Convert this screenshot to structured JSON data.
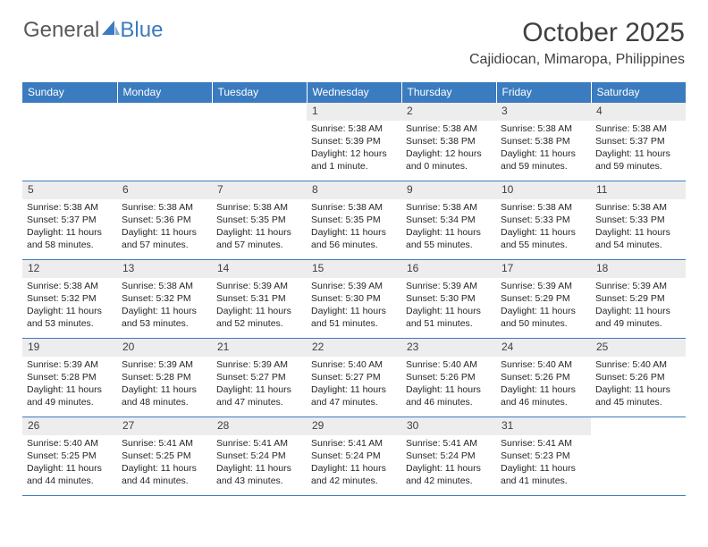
{
  "brand": {
    "part1": "General",
    "part2": "Blue"
  },
  "title": "October 2025",
  "location": "Cajidiocan, Mimaropa, Philippines",
  "colors": {
    "header_bg": "#3b7bbf",
    "header_text": "#ffffff",
    "daynum_bg": "#ededed",
    "text": "#404040",
    "border": "#3b7bbf"
  },
  "week_headers": [
    "Sunday",
    "Monday",
    "Tuesday",
    "Wednesday",
    "Thursday",
    "Friday",
    "Saturday"
  ],
  "weeks": [
    [
      null,
      null,
      null,
      {
        "n": "1",
        "sr": "Sunrise: 5:38 AM",
        "ss": "Sunset: 5:39 PM",
        "dl": "Daylight: 12 hours and 1 minute."
      },
      {
        "n": "2",
        "sr": "Sunrise: 5:38 AM",
        "ss": "Sunset: 5:38 PM",
        "dl": "Daylight: 12 hours and 0 minutes."
      },
      {
        "n": "3",
        "sr": "Sunrise: 5:38 AM",
        "ss": "Sunset: 5:38 PM",
        "dl": "Daylight: 11 hours and 59 minutes."
      },
      {
        "n": "4",
        "sr": "Sunrise: 5:38 AM",
        "ss": "Sunset: 5:37 PM",
        "dl": "Daylight: 11 hours and 59 minutes."
      }
    ],
    [
      {
        "n": "5",
        "sr": "Sunrise: 5:38 AM",
        "ss": "Sunset: 5:37 PM",
        "dl": "Daylight: 11 hours and 58 minutes."
      },
      {
        "n": "6",
        "sr": "Sunrise: 5:38 AM",
        "ss": "Sunset: 5:36 PM",
        "dl": "Daylight: 11 hours and 57 minutes."
      },
      {
        "n": "7",
        "sr": "Sunrise: 5:38 AM",
        "ss": "Sunset: 5:35 PM",
        "dl": "Daylight: 11 hours and 57 minutes."
      },
      {
        "n": "8",
        "sr": "Sunrise: 5:38 AM",
        "ss": "Sunset: 5:35 PM",
        "dl": "Daylight: 11 hours and 56 minutes."
      },
      {
        "n": "9",
        "sr": "Sunrise: 5:38 AM",
        "ss": "Sunset: 5:34 PM",
        "dl": "Daylight: 11 hours and 55 minutes."
      },
      {
        "n": "10",
        "sr": "Sunrise: 5:38 AM",
        "ss": "Sunset: 5:33 PM",
        "dl": "Daylight: 11 hours and 55 minutes."
      },
      {
        "n": "11",
        "sr": "Sunrise: 5:38 AM",
        "ss": "Sunset: 5:33 PM",
        "dl": "Daylight: 11 hours and 54 minutes."
      }
    ],
    [
      {
        "n": "12",
        "sr": "Sunrise: 5:38 AM",
        "ss": "Sunset: 5:32 PM",
        "dl": "Daylight: 11 hours and 53 minutes."
      },
      {
        "n": "13",
        "sr": "Sunrise: 5:38 AM",
        "ss": "Sunset: 5:32 PM",
        "dl": "Daylight: 11 hours and 53 minutes."
      },
      {
        "n": "14",
        "sr": "Sunrise: 5:39 AM",
        "ss": "Sunset: 5:31 PM",
        "dl": "Daylight: 11 hours and 52 minutes."
      },
      {
        "n": "15",
        "sr": "Sunrise: 5:39 AM",
        "ss": "Sunset: 5:30 PM",
        "dl": "Daylight: 11 hours and 51 minutes."
      },
      {
        "n": "16",
        "sr": "Sunrise: 5:39 AM",
        "ss": "Sunset: 5:30 PM",
        "dl": "Daylight: 11 hours and 51 minutes."
      },
      {
        "n": "17",
        "sr": "Sunrise: 5:39 AM",
        "ss": "Sunset: 5:29 PM",
        "dl": "Daylight: 11 hours and 50 minutes."
      },
      {
        "n": "18",
        "sr": "Sunrise: 5:39 AM",
        "ss": "Sunset: 5:29 PM",
        "dl": "Daylight: 11 hours and 49 minutes."
      }
    ],
    [
      {
        "n": "19",
        "sr": "Sunrise: 5:39 AM",
        "ss": "Sunset: 5:28 PM",
        "dl": "Daylight: 11 hours and 49 minutes."
      },
      {
        "n": "20",
        "sr": "Sunrise: 5:39 AM",
        "ss": "Sunset: 5:28 PM",
        "dl": "Daylight: 11 hours and 48 minutes."
      },
      {
        "n": "21",
        "sr": "Sunrise: 5:39 AM",
        "ss": "Sunset: 5:27 PM",
        "dl": "Daylight: 11 hours and 47 minutes."
      },
      {
        "n": "22",
        "sr": "Sunrise: 5:40 AM",
        "ss": "Sunset: 5:27 PM",
        "dl": "Daylight: 11 hours and 47 minutes."
      },
      {
        "n": "23",
        "sr": "Sunrise: 5:40 AM",
        "ss": "Sunset: 5:26 PM",
        "dl": "Daylight: 11 hours and 46 minutes."
      },
      {
        "n": "24",
        "sr": "Sunrise: 5:40 AM",
        "ss": "Sunset: 5:26 PM",
        "dl": "Daylight: 11 hours and 46 minutes."
      },
      {
        "n": "25",
        "sr": "Sunrise: 5:40 AM",
        "ss": "Sunset: 5:26 PM",
        "dl": "Daylight: 11 hours and 45 minutes."
      }
    ],
    [
      {
        "n": "26",
        "sr": "Sunrise: 5:40 AM",
        "ss": "Sunset: 5:25 PM",
        "dl": "Daylight: 11 hours and 44 minutes."
      },
      {
        "n": "27",
        "sr": "Sunrise: 5:41 AM",
        "ss": "Sunset: 5:25 PM",
        "dl": "Daylight: 11 hours and 44 minutes."
      },
      {
        "n": "28",
        "sr": "Sunrise: 5:41 AM",
        "ss": "Sunset: 5:24 PM",
        "dl": "Daylight: 11 hours and 43 minutes."
      },
      {
        "n": "29",
        "sr": "Sunrise: 5:41 AM",
        "ss": "Sunset: 5:24 PM",
        "dl": "Daylight: 11 hours and 42 minutes."
      },
      {
        "n": "30",
        "sr": "Sunrise: 5:41 AM",
        "ss": "Sunset: 5:24 PM",
        "dl": "Daylight: 11 hours and 42 minutes."
      },
      {
        "n": "31",
        "sr": "Sunrise: 5:41 AM",
        "ss": "Sunset: 5:23 PM",
        "dl": "Daylight: 11 hours and 41 minutes."
      },
      null
    ]
  ]
}
